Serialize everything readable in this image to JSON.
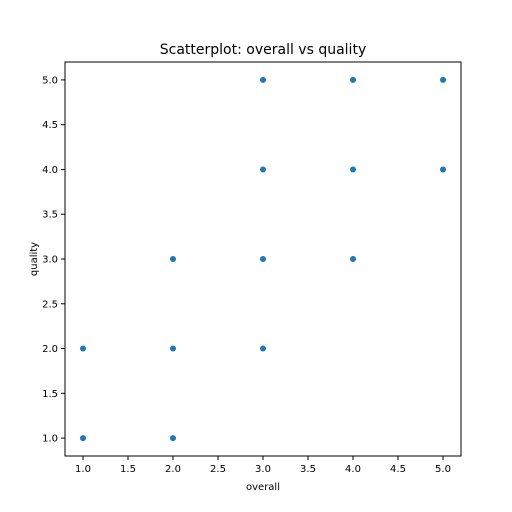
{
  "chart_data": {
    "type": "scatter",
    "title": "Scatterplot: overall vs quality",
    "xlabel": "overall",
    "ylabel": "quality",
    "xlim": [
      0.8,
      5.2
    ],
    "ylim": [
      0.8,
      5.2
    ],
    "xticks": [
      "1.0",
      "1.5",
      "2.0",
      "2.5",
      "3.0",
      "3.5",
      "4.0",
      "4.5",
      "5.0"
    ],
    "yticks": [
      "1.0",
      "1.5",
      "2.0",
      "2.5",
      "3.0",
      "3.5",
      "4.0",
      "4.5",
      "5.0"
    ],
    "grid": false,
    "marker_color": "#1f77b4",
    "points": [
      {
        "x": 1,
        "y": 1
      },
      {
        "x": 1,
        "y": 2
      },
      {
        "x": 2,
        "y": 1
      },
      {
        "x": 2,
        "y": 2
      },
      {
        "x": 2,
        "y": 3
      },
      {
        "x": 3,
        "y": 2
      },
      {
        "x": 3,
        "y": 3
      },
      {
        "x": 3,
        "y": 4
      },
      {
        "x": 3,
        "y": 5
      },
      {
        "x": 4,
        "y": 3
      },
      {
        "x": 4,
        "y": 4
      },
      {
        "x": 4,
        "y": 5
      },
      {
        "x": 5,
        "y": 4
      },
      {
        "x": 5,
        "y": 5
      }
    ]
  }
}
